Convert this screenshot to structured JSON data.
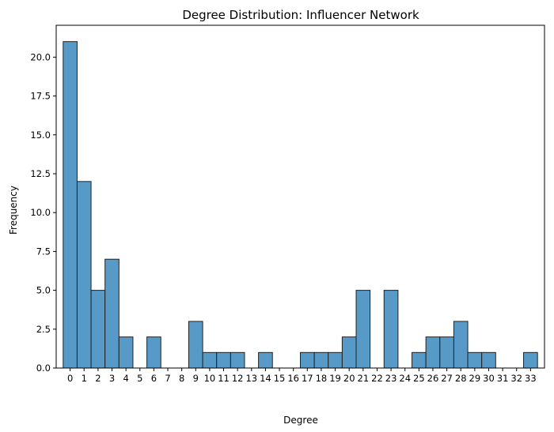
{
  "chart_data": {
    "type": "bar",
    "title": "Degree Distribution: Influencer Network",
    "xlabel": "Degree",
    "ylabel": "Frequency",
    "categories": [
      "0",
      "1",
      "2",
      "3",
      "4",
      "5",
      "6",
      "7",
      "8",
      "9",
      "10",
      "11",
      "12",
      "13",
      "14",
      "15",
      "16",
      "17",
      "18",
      "19",
      "20",
      "21",
      "22",
      "23",
      "24",
      "25",
      "26",
      "27",
      "28",
      "29",
      "30",
      "31",
      "32",
      "33"
    ],
    "values": [
      21,
      12,
      5,
      7,
      2,
      0,
      2,
      0,
      0,
      3,
      1,
      1,
      1,
      0,
      1,
      0,
      0,
      1,
      1,
      1,
      2,
      5,
      0,
      5,
      0,
      1,
      2,
      2,
      3,
      1,
      1,
      0,
      0,
      1
    ],
    "ylim": [
      0,
      22.05
    ],
    "yticks": [
      "0.0",
      "2.5",
      "5.0",
      "7.5",
      "10.0",
      "12.5",
      "15.0",
      "17.5",
      "20.0"
    ],
    "ytick_values": [
      0,
      2.5,
      5,
      7.5,
      10,
      12.5,
      15,
      17.5,
      20
    ],
    "color": "#5799c7",
    "edge_color": "#222222",
    "grid": false
  }
}
